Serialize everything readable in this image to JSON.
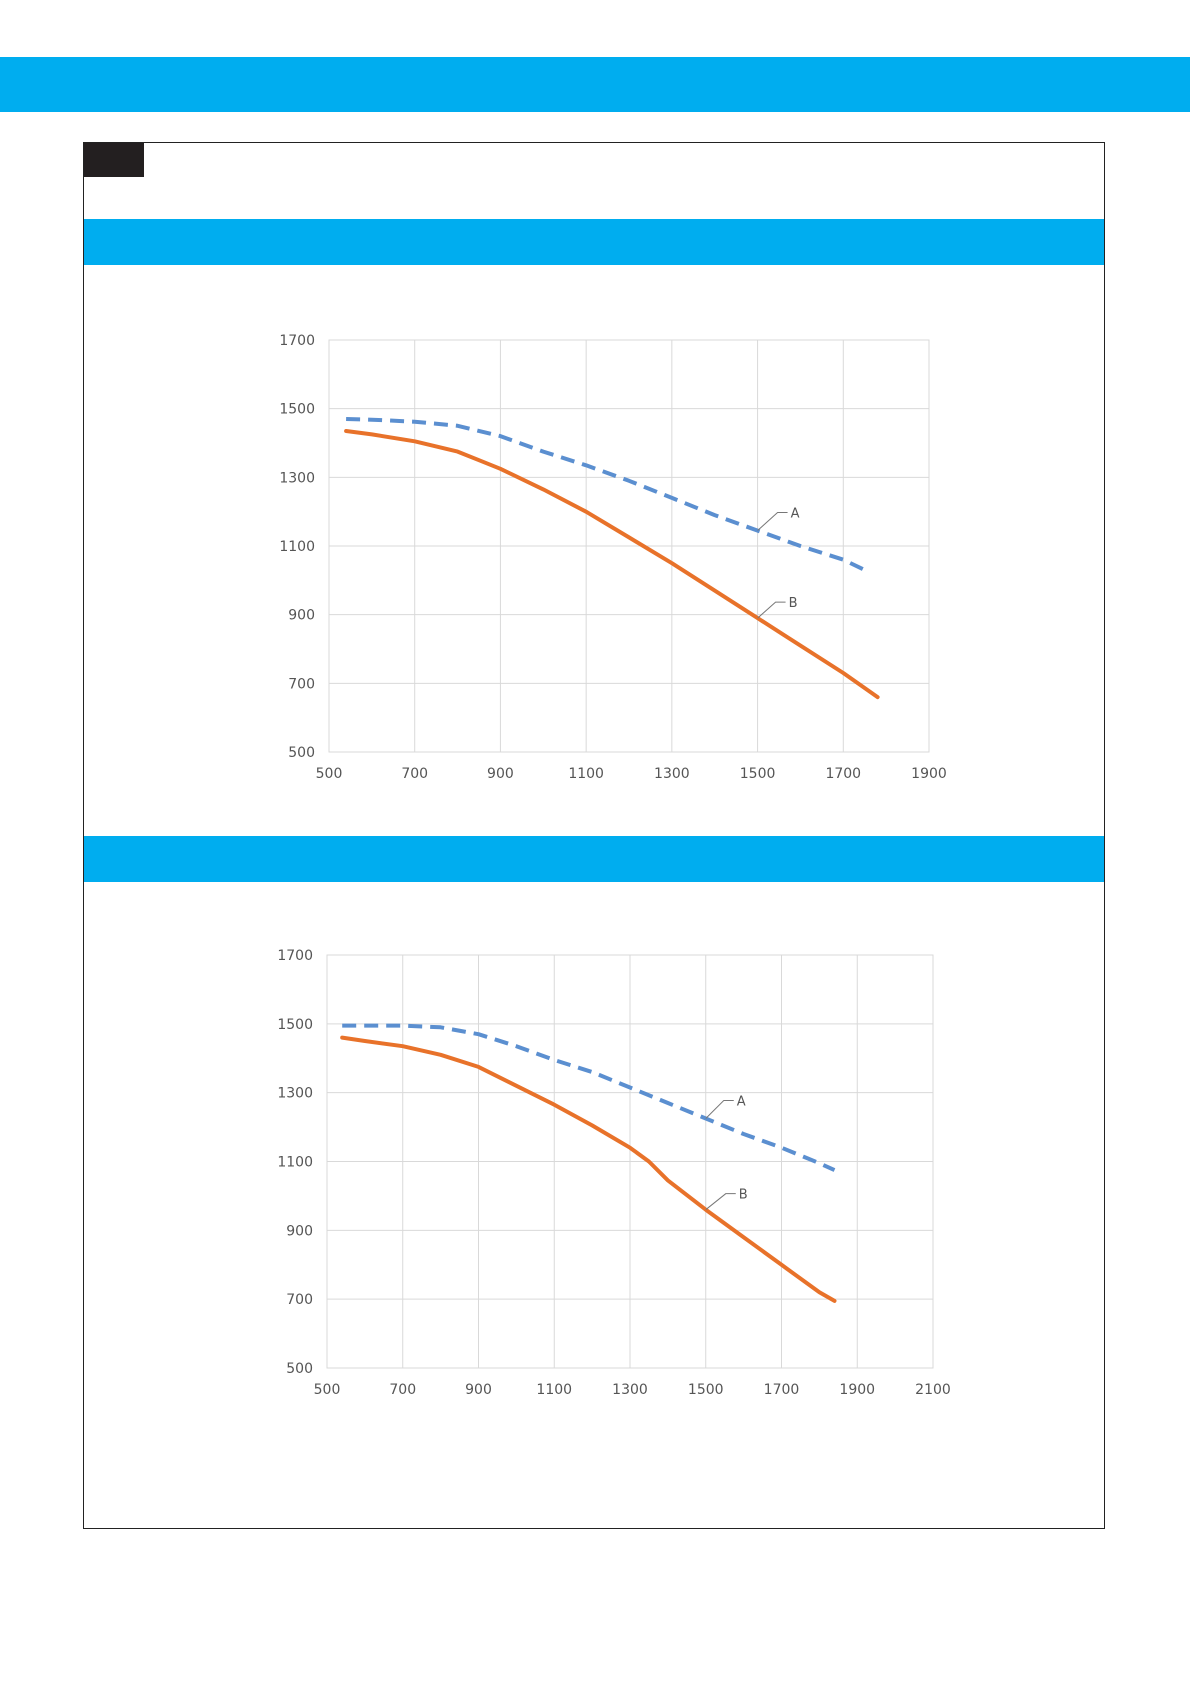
{
  "colors": {
    "band": "#00adef",
    "tag": "#231f20",
    "series_a": "#5b8fd0",
    "series_b": "#e8722a",
    "grid": "#d9d9d9"
  },
  "chart_data": [
    {
      "type": "line",
      "title": "",
      "xlabel": "",
      "ylabel": "",
      "xlim": [
        500,
        1900
      ],
      "ylim": [
        500,
        1700
      ],
      "xticks": [
        500,
        700,
        900,
        1100,
        1300,
        1500,
        1700,
        1900
      ],
      "yticks": [
        500,
        700,
        900,
        1100,
        1300,
        1500,
        1700
      ],
      "grid": true,
      "series": [
        {
          "name": "A",
          "style": "dashed",
          "x": [
            540,
            600,
            700,
            800,
            900,
            1000,
            1100,
            1200,
            1300,
            1400,
            1500,
            1600,
            1700,
            1750
          ],
          "y": [
            1470,
            1468,
            1462,
            1450,
            1420,
            1375,
            1335,
            1290,
            1240,
            1190,
            1145,
            1100,
            1060,
            1030
          ]
        },
        {
          "name": "B",
          "style": "solid",
          "x": [
            540,
            600,
            700,
            800,
            850,
            900,
            1000,
            1100,
            1200,
            1300,
            1400,
            1500,
            1600,
            1700,
            1780
          ],
          "y": [
            1435,
            1425,
            1405,
            1375,
            1350,
            1325,
            1265,
            1200,
            1125,
            1050,
            970,
            890,
            810,
            730,
            660
          ]
        }
      ]
    },
    {
      "type": "line",
      "title": "",
      "xlabel": "",
      "ylabel": "",
      "xlim": [
        500,
        2100
      ],
      "ylim": [
        500,
        1700
      ],
      "xticks": [
        500,
        700,
        900,
        1100,
        1300,
        1500,
        1700,
        1900,
        2100
      ],
      "yticks": [
        500,
        700,
        900,
        1100,
        1300,
        1500,
        1700
      ],
      "grid": true,
      "series": [
        {
          "name": "A",
          "style": "dashed",
          "x": [
            540,
            600,
            700,
            800,
            900,
            1000,
            1100,
            1200,
            1300,
            1400,
            1500,
            1600,
            1700,
            1800,
            1840
          ],
          "y": [
            1495,
            1495,
            1495,
            1490,
            1470,
            1435,
            1395,
            1360,
            1315,
            1270,
            1225,
            1180,
            1140,
            1095,
            1075
          ]
        },
        {
          "name": "B",
          "style": "solid",
          "x": [
            540,
            600,
            700,
            800,
            900,
            1000,
            1100,
            1200,
            1300,
            1350,
            1400,
            1500,
            1600,
            1700,
            1800,
            1840
          ],
          "y": [
            1460,
            1450,
            1435,
            1410,
            1375,
            1320,
            1265,
            1205,
            1140,
            1100,
            1045,
            960,
            880,
            800,
            720,
            695
          ]
        }
      ]
    }
  ]
}
